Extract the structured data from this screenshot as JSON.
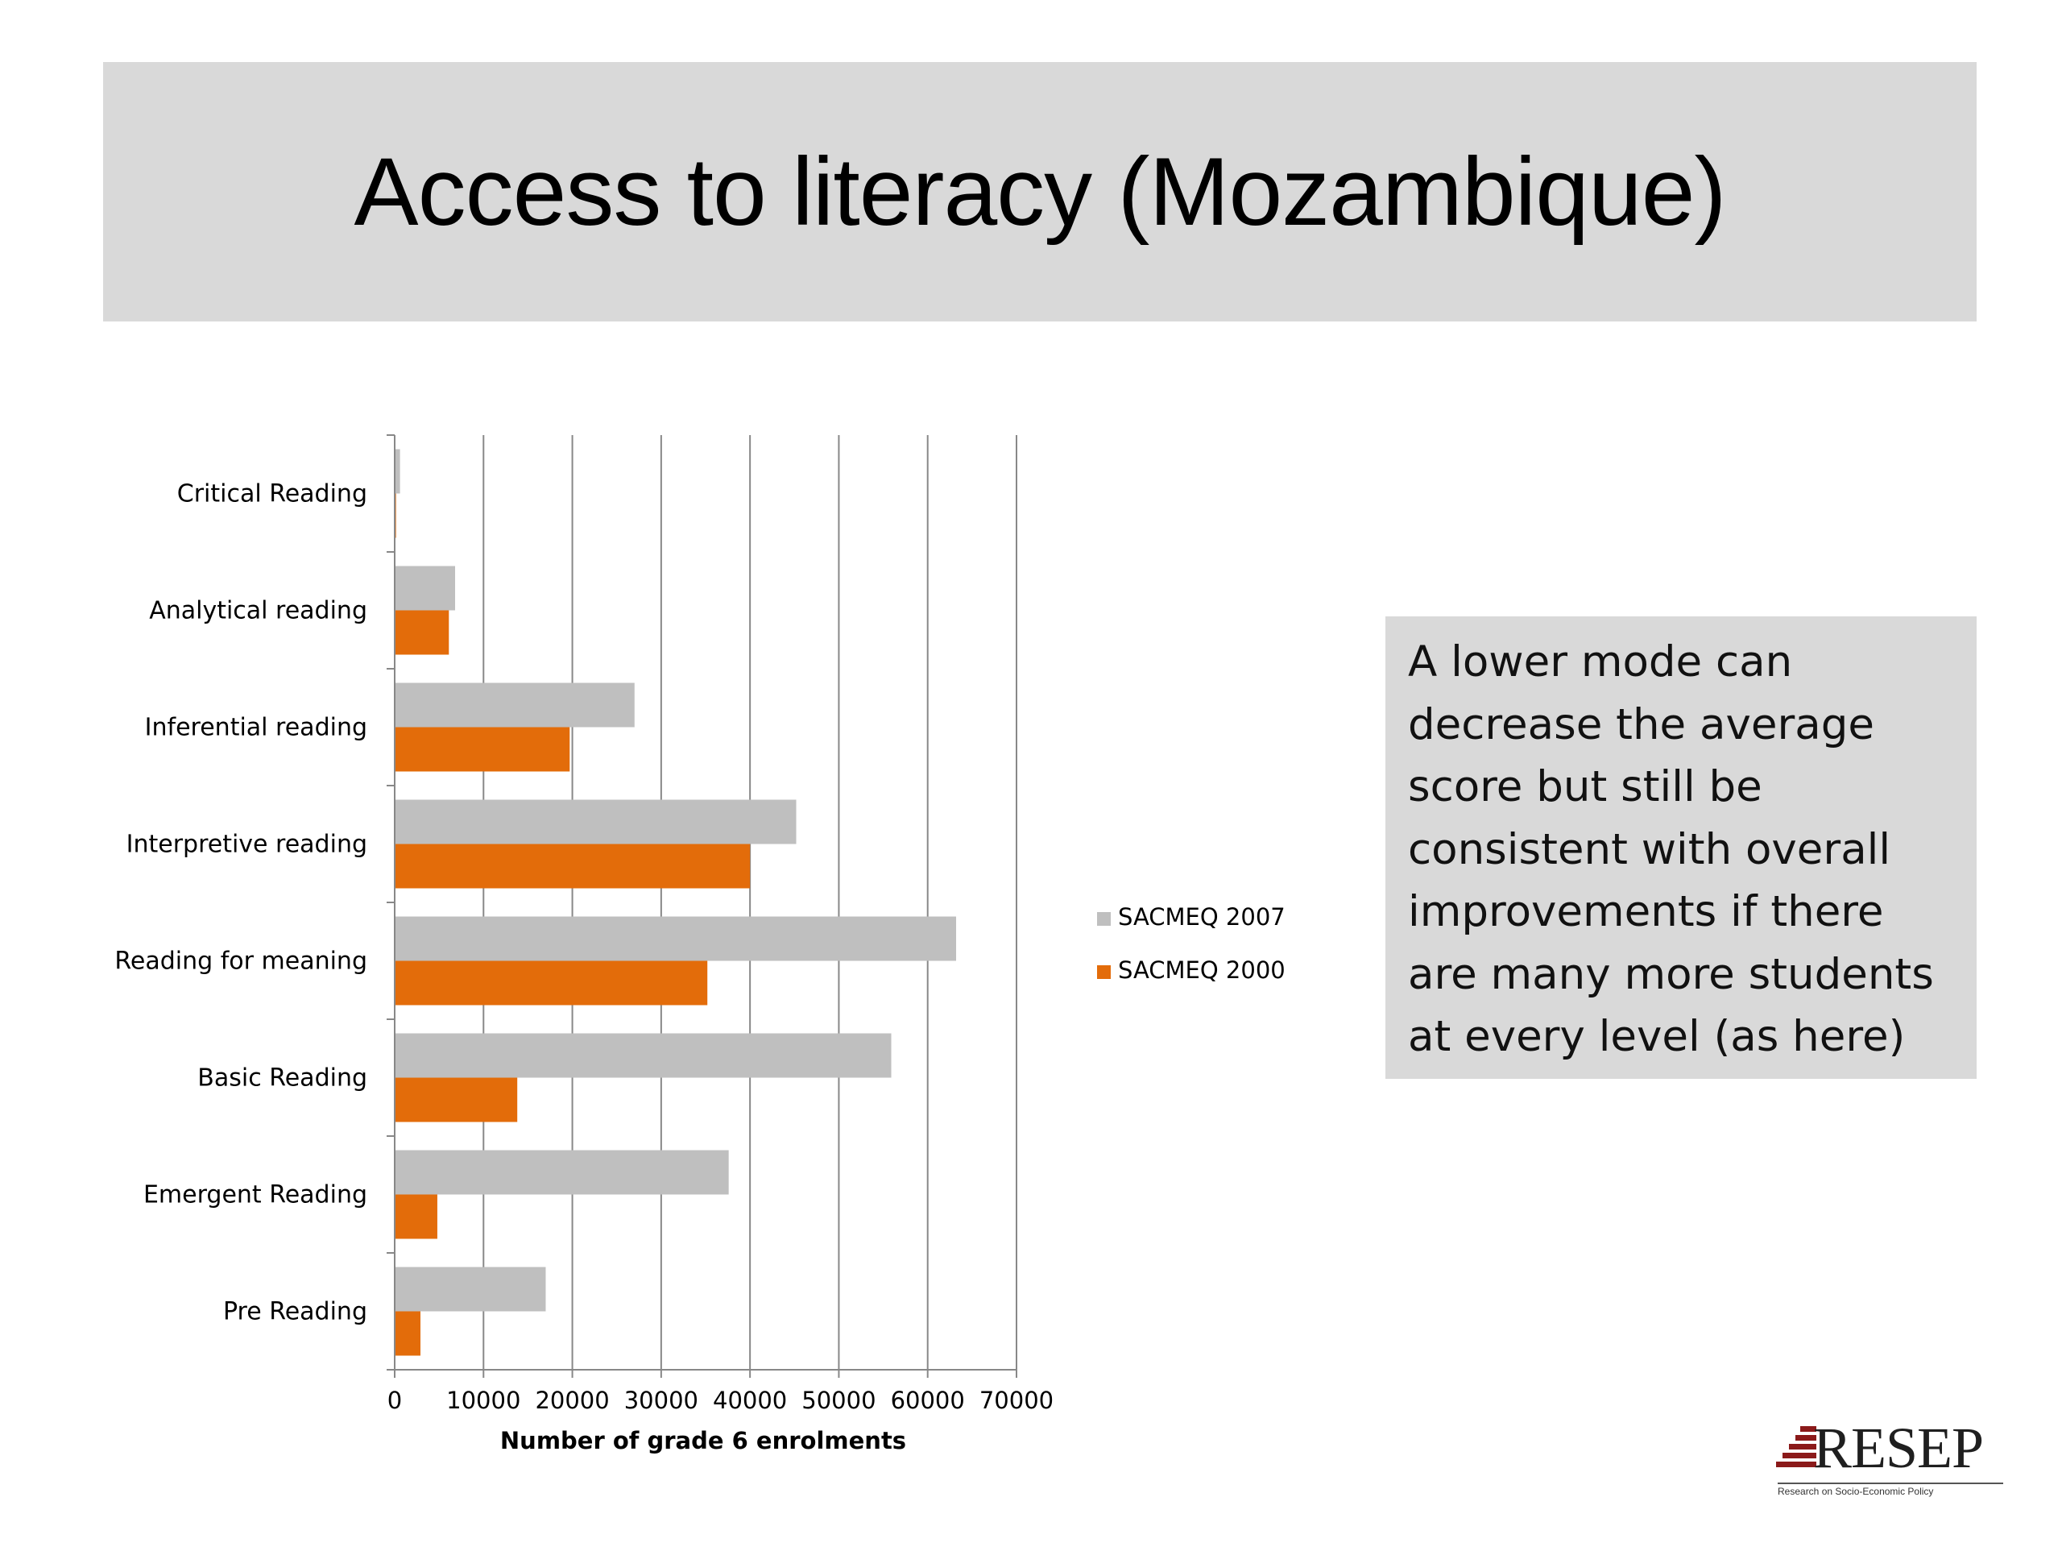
{
  "slide": {
    "title": "Access to literacy (Mozambique)",
    "callout": "A lower mode can decrease the average score but still be consistent with overall improvements if there are many more students at every level (as here)"
  },
  "logo": {
    "name": "RESEP",
    "subtitle": "Research on Socio-Economic Policy"
  },
  "colors": {
    "series_2007": "#bfbfbf",
    "series_2000": "#e36c0a",
    "gridline": "#888888",
    "title_band": "#d9d9d9"
  },
  "chart_data": {
    "type": "bar",
    "orientation": "horizontal",
    "categories": [
      "Critical Reading",
      "Analytical reading",
      "Inferential reading",
      "Interpretive reading",
      "Reading for meaning",
      "Basic Reading",
      "Emergent Reading",
      "Pre Reading"
    ],
    "series": [
      {
        "name": "SACMEQ 2007",
        "values": [
          600,
          6800,
          27000,
          45200,
          63200,
          55900,
          37600,
          17000
        ]
      },
      {
        "name": "SACMEQ 2000",
        "values": [
          150,
          6100,
          19700,
          40000,
          35200,
          13800,
          4800,
          2900
        ]
      }
    ],
    "xlabel": "Number of grade 6 enrolments",
    "ylabel": "",
    "xlim": [
      0,
      70000
    ],
    "xticks": [
      "0",
      "10000",
      "20000",
      "30000",
      "40000",
      "50000",
      "60000",
      "70000"
    ],
    "grid": "vertical gridlines on",
    "legend": "right"
  }
}
